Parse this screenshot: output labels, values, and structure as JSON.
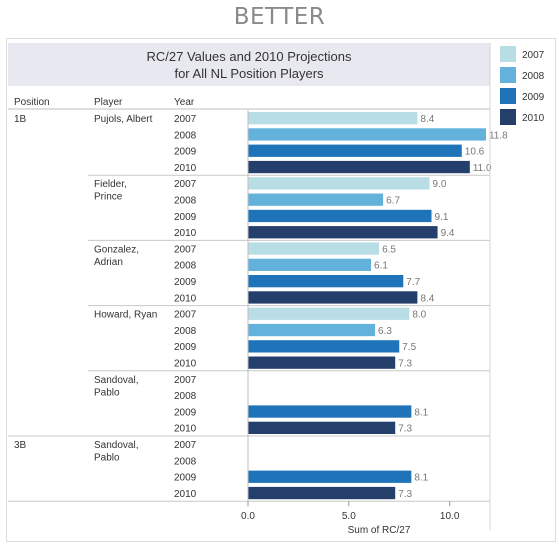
{
  "heading": "BETTER",
  "colors": {
    "2007": "#b9dde4",
    "2008": "#63b2db",
    "2009": "#1f74b9",
    "2010": "#243f6b"
  },
  "chart_data": {
    "type": "bar",
    "orientation": "horizontal",
    "title": "RC/27 Values and 2010 Projections",
    "subtitle": "for All NL Position Players",
    "columns": [
      "Position",
      "Player",
      "Year"
    ],
    "xlabel": "Sum of RC/27",
    "xlim": [
      0,
      12
    ],
    "xticks": [
      {
        "value": 0,
        "label": "0.0"
      },
      {
        "value": 5,
        "label": "5.0"
      },
      {
        "value": 10,
        "label": "10.0"
      }
    ],
    "legend": {
      "placement": "top-right",
      "entries": [
        "2007",
        "2008",
        "2009",
        "2010"
      ]
    },
    "groups": [
      {
        "position": "1B",
        "players": [
          {
            "name_lines": [
              "Pujols, Albert"
            ],
            "rows": [
              {
                "year": "2007",
                "value": 8.4,
                "label": "8.4"
              },
              {
                "year": "2008",
                "value": 11.8,
                "label": "11.8"
              },
              {
                "year": "2009",
                "value": 10.6,
                "label": "10.6"
              },
              {
                "year": "2010",
                "value": 11.0,
                "label": "11.0"
              }
            ]
          },
          {
            "name_lines": [
              "Fielder,",
              "Prince"
            ],
            "rows": [
              {
                "year": "2007",
                "value": 9.0,
                "label": "9.0"
              },
              {
                "year": "2008",
                "value": 6.7,
                "label": "6.7"
              },
              {
                "year": "2009",
                "value": 9.1,
                "label": "9.1"
              },
              {
                "year": "2010",
                "value": 9.4,
                "label": "9.4"
              }
            ]
          },
          {
            "name_lines": [
              "Gonzalez,",
              "Adrian"
            ],
            "rows": [
              {
                "year": "2007",
                "value": 6.5,
                "label": "6.5"
              },
              {
                "year": "2008",
                "value": 6.1,
                "label": "6.1"
              },
              {
                "year": "2009",
                "value": 7.7,
                "label": "7.7"
              },
              {
                "year": "2010",
                "value": 8.4,
                "label": "8.4"
              }
            ]
          },
          {
            "name_lines": [
              "Howard, Ryan"
            ],
            "rows": [
              {
                "year": "2007",
                "value": 8.0,
                "label": "8.0"
              },
              {
                "year": "2008",
                "value": 6.3,
                "label": "6.3"
              },
              {
                "year": "2009",
                "value": 7.5,
                "label": "7.5"
              },
              {
                "year": "2010",
                "value": 7.3,
                "label": "7.3"
              }
            ]
          },
          {
            "name_lines": [
              "Sandoval,",
              "Pablo"
            ],
            "rows": [
              {
                "year": "2007",
                "value": null,
                "label": ""
              },
              {
                "year": "2008",
                "value": null,
                "label": ""
              },
              {
                "year": "2009",
                "value": 8.1,
                "label": "8.1"
              },
              {
                "year": "2010",
                "value": 7.3,
                "label": "7.3"
              }
            ]
          }
        ]
      },
      {
        "position": "3B",
        "players": [
          {
            "name_lines": [
              "Sandoval,",
              "Pablo"
            ],
            "rows": [
              {
                "year": "2007",
                "value": null,
                "label": ""
              },
              {
                "year": "2008",
                "value": null,
                "label": ""
              },
              {
                "year": "2009",
                "value": 8.1,
                "label": "8.1"
              },
              {
                "year": "2010",
                "value": 7.3,
                "label": "7.3"
              }
            ]
          }
        ]
      }
    ]
  }
}
